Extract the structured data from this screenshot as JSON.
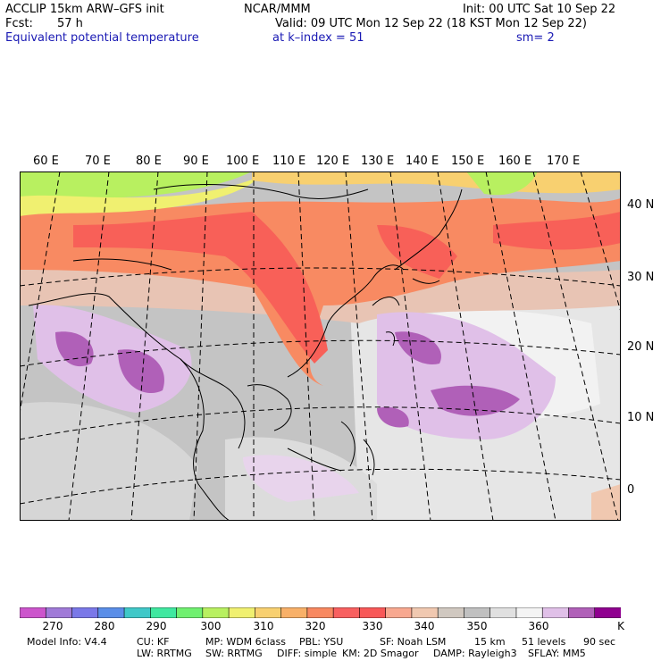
{
  "header": {
    "model": "ACCLIP 15km ARW–GFS init",
    "org": "NCAR/MMM",
    "init": "Init: 00 UTC Sat 10 Sep 22",
    "fcst_label": "Fcst:",
    "fcst_value": "57 h",
    "valid": "Valid: 09 UTC Mon 12 Sep 22 (18 KST Mon 12 Sep 22)",
    "field": "Equivalent potential temperature",
    "level": "at k–index =  51",
    "smooth": "sm= 2"
  },
  "map": {
    "lon_labels": [
      "60 E",
      "70 E",
      "80 E",
      "90 E",
      "100 E",
      "110 E",
      "120 E",
      "130 E",
      "140 E",
      "150 E",
      "160 E",
      "170 E"
    ],
    "lat_labels": [
      "40 N",
      "30 N",
      "20 N",
      "10 N",
      "0"
    ]
  },
  "colorbar": {
    "unit": "K",
    "colors": [
      "#cc55cc",
      "#a07ad8",
      "#7a78e8",
      "#5a8ee8",
      "#40c8c8",
      "#40e8a0",
      "#70f070",
      "#b8f060",
      "#f0f070",
      "#f8d070",
      "#f8b068",
      "#f88860",
      "#f86060",
      "#f85858",
      "#f8a890",
      "#f0c8b0",
      "#d0c8c0",
      "#c0c0c0",
      "#e0e0e0",
      "#f4f4f4",
      "#e0c0e8",
      "#b060b8",
      "#900090"
    ],
    "labels": [
      "270",
      "280",
      "290",
      "300",
      "310",
      "320",
      "330",
      "340",
      "350",
      "360"
    ]
  },
  "footer": {
    "line1": [
      "Model Info: V4.4",
      "CU: KF",
      "MP: WDM 6class",
      "PBL: YSU",
      "SF: Noah LSM",
      "15 km",
      "51 levels",
      "90 sec"
    ],
    "line2": [
      "LW: RRTMG",
      "SW: RRTMG",
      "DIFF: simple",
      "KM: 2D Smagor",
      "DAMP: Rayleigh3",
      "SFLAY: MM5"
    ]
  }
}
